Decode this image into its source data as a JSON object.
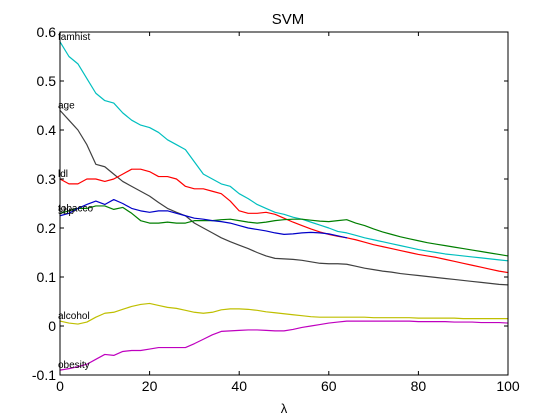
{
  "chart_data": {
    "type": "line",
    "title": "SVM",
    "xlabel": "λ",
    "ylabel": "",
    "xlim": [
      0,
      100
    ],
    "ylim": [
      -0.1,
      0.6
    ],
    "xticks": [
      0,
      20,
      40,
      60,
      80,
      100
    ],
    "xtick_labels": [
      "0",
      "20",
      "40",
      "60",
      "80",
      "100"
    ],
    "yticks": [
      -0.1,
      0,
      0.1,
      0.2,
      0.3,
      0.4,
      0.5,
      0.6
    ],
    "ytick_labels": [
      "-0.1",
      "0",
      "0.1",
      "0.2",
      "0.3",
      "0.4",
      "0.5",
      "0.6"
    ],
    "grid": false,
    "series": [
      {
        "name": "famhist",
        "color": "#00bfbf",
        "x": [
          0,
          2,
          4,
          6,
          8,
          10,
          12,
          14,
          16,
          18,
          20,
          22,
          24,
          26,
          28,
          30,
          32,
          34,
          36,
          38,
          40,
          42,
          44,
          46,
          48,
          50,
          52,
          54,
          56,
          58,
          60,
          62,
          64,
          66,
          68,
          70,
          72,
          74,
          76,
          78,
          80,
          82,
          84,
          86,
          88,
          90,
          92,
          94,
          96,
          98,
          100
        ],
        "y": [
          0.58,
          0.55,
          0.535,
          0.505,
          0.475,
          0.46,
          0.455,
          0.435,
          0.42,
          0.41,
          0.405,
          0.395,
          0.38,
          0.37,
          0.36,
          0.335,
          0.31,
          0.3,
          0.29,
          0.285,
          0.27,
          0.26,
          0.248,
          0.24,
          0.232,
          0.228,
          0.222,
          0.218,
          0.212,
          0.206,
          0.2,
          0.193,
          0.19,
          0.185,
          0.18,
          0.176,
          0.172,
          0.168,
          0.164,
          0.16,
          0.156,
          0.153,
          0.15,
          0.147,
          0.145,
          0.143,
          0.141,
          0.139,
          0.137,
          0.135,
          0.133
        ]
      },
      {
        "name": "age",
        "color": "#404040",
        "x": [
          0,
          2,
          4,
          6,
          8,
          10,
          12,
          14,
          16,
          18,
          20,
          22,
          24,
          26,
          28,
          30,
          32,
          34,
          36,
          38,
          40,
          42,
          44,
          46,
          48,
          50,
          52,
          54,
          56,
          58,
          60,
          62,
          64,
          66,
          68,
          70,
          72,
          74,
          76,
          78,
          80,
          82,
          84,
          86,
          88,
          90,
          92,
          94,
          96,
          98,
          100
        ],
        "y": [
          0.44,
          0.42,
          0.4,
          0.37,
          0.33,
          0.325,
          0.31,
          0.295,
          0.285,
          0.275,
          0.265,
          0.252,
          0.24,
          0.232,
          0.225,
          0.21,
          0.2,
          0.19,
          0.18,
          0.172,
          0.165,
          0.158,
          0.15,
          0.143,
          0.138,
          0.137,
          0.136,
          0.134,
          0.131,
          0.128,
          0.127,
          0.127,
          0.126,
          0.122,
          0.118,
          0.115,
          0.112,
          0.11,
          0.107,
          0.105,
          0.103,
          0.101,
          0.099,
          0.097,
          0.095,
          0.093,
          0.091,
          0.089,
          0.087,
          0.085,
          0.084
        ]
      },
      {
        "name": "ldl",
        "color": "#ff0000",
        "x": [
          0,
          2,
          4,
          6,
          8,
          10,
          12,
          14,
          16,
          18,
          20,
          22,
          24,
          26,
          28,
          30,
          32,
          34,
          36,
          38,
          40,
          42,
          44,
          46,
          48,
          50,
          52,
          54,
          56,
          58,
          60,
          62,
          64,
          66,
          68,
          70,
          72,
          74,
          76,
          78,
          80,
          82,
          84,
          86,
          88,
          90,
          92,
          94,
          96,
          98,
          100
        ],
        "y": [
          0.3,
          0.29,
          0.29,
          0.3,
          0.3,
          0.295,
          0.3,
          0.31,
          0.32,
          0.32,
          0.315,
          0.305,
          0.305,
          0.3,
          0.285,
          0.28,
          0.28,
          0.275,
          0.27,
          0.255,
          0.235,
          0.23,
          0.23,
          0.232,
          0.228,
          0.22,
          0.212,
          0.205,
          0.198,
          0.192,
          0.187,
          0.183,
          0.18,
          0.176,
          0.171,
          0.166,
          0.162,
          0.158,
          0.154,
          0.15,
          0.146,
          0.143,
          0.14,
          0.136,
          0.132,
          0.128,
          0.124,
          0.12,
          0.116,
          0.112,
          0.109
        ]
      },
      {
        "name": "tobacco",
        "color": "#007f00",
        "x": [
          0,
          2,
          4,
          6,
          8,
          10,
          12,
          14,
          16,
          18,
          20,
          22,
          24,
          26,
          28,
          30,
          32,
          34,
          36,
          38,
          40,
          42,
          44,
          46,
          48,
          50,
          52,
          54,
          56,
          58,
          60,
          62,
          64,
          66,
          68,
          70,
          72,
          74,
          76,
          78,
          80,
          82,
          84,
          86,
          88,
          90,
          92,
          94,
          96,
          98,
          100
        ],
        "y": [
          0.23,
          0.235,
          0.24,
          0.24,
          0.245,
          0.245,
          0.238,
          0.242,
          0.23,
          0.215,
          0.21,
          0.21,
          0.212,
          0.21,
          0.21,
          0.215,
          0.215,
          0.215,
          0.217,
          0.218,
          0.215,
          0.212,
          0.21,
          0.212,
          0.215,
          0.217,
          0.218,
          0.218,
          0.216,
          0.214,
          0.213,
          0.215,
          0.217,
          0.21,
          0.205,
          0.198,
          0.192,
          0.187,
          0.182,
          0.178,
          0.174,
          0.17,
          0.167,
          0.164,
          0.161,
          0.158,
          0.155,
          0.152,
          0.149,
          0.146,
          0.143
        ]
      },
      {
        "name": "sbp",
        "color": "#0000c8",
        "x": [
          0,
          2,
          4,
          6,
          8,
          10,
          12,
          14,
          16,
          18,
          20,
          22,
          24,
          26,
          28,
          30,
          32,
          34,
          36,
          38,
          40,
          42,
          44,
          46,
          48,
          50,
          52,
          54,
          56,
          58,
          60,
          62,
          64
        ],
        "y": [
          0.225,
          0.23,
          0.24,
          0.248,
          0.255,
          0.248,
          0.258,
          0.25,
          0.24,
          0.235,
          0.232,
          0.235,
          0.235,
          0.23,
          0.225,
          0.22,
          0.218,
          0.215,
          0.213,
          0.21,
          0.205,
          0.2,
          0.197,
          0.194,
          0.19,
          0.187,
          0.188,
          0.19,
          0.191,
          0.19,
          0.188,
          0.184,
          0.18
        ]
      },
      {
        "name": "alcohol",
        "color": "#bfbf00",
        "x": [
          0,
          2,
          4,
          6,
          8,
          10,
          12,
          14,
          16,
          18,
          20,
          22,
          24,
          26,
          28,
          30,
          32,
          34,
          36,
          38,
          40,
          42,
          44,
          46,
          48,
          50,
          52,
          54,
          56,
          58,
          60,
          62,
          64,
          66,
          68,
          70,
          72,
          74,
          76,
          78,
          80,
          82,
          84,
          86,
          88,
          90,
          92,
          94,
          96,
          98,
          100
        ],
        "y": [
          0.01,
          0.006,
          0.004,
          0.008,
          0.018,
          0.026,
          0.028,
          0.034,
          0.04,
          0.044,
          0.046,
          0.042,
          0.038,
          0.036,
          0.032,
          0.028,
          0.026,
          0.028,
          0.033,
          0.035,
          0.035,
          0.034,
          0.032,
          0.029,
          0.027,
          0.025,
          0.023,
          0.021,
          0.019,
          0.018,
          0.018,
          0.018,
          0.018,
          0.018,
          0.018,
          0.017,
          0.017,
          0.017,
          0.017,
          0.017,
          0.016,
          0.016,
          0.016,
          0.016,
          0.016,
          0.015,
          0.015,
          0.015,
          0.015,
          0.015,
          0.015
        ]
      },
      {
        "name": "obesity",
        "color": "#bf00bf",
        "x": [
          0,
          2,
          4,
          6,
          8,
          10,
          12,
          14,
          16,
          18,
          20,
          22,
          24,
          26,
          28,
          30,
          32,
          34,
          36,
          38,
          40,
          42,
          44,
          46,
          48,
          50,
          52,
          54,
          56,
          58,
          60,
          62,
          64,
          66,
          68,
          70,
          72,
          74,
          76,
          78,
          80,
          82,
          84,
          86,
          88,
          90,
          92,
          94,
          96,
          98,
          100
        ],
        "y": [
          -0.09,
          -0.087,
          -0.083,
          -0.078,
          -0.068,
          -0.058,
          -0.06,
          -0.052,
          -0.05,
          -0.05,
          -0.047,
          -0.044,
          -0.044,
          -0.044,
          -0.044,
          -0.036,
          -0.027,
          -0.018,
          -0.011,
          -0.01,
          -0.009,
          -0.008,
          -0.008,
          -0.009,
          -0.01,
          -0.01,
          -0.007,
          -0.003,
          0.0,
          0.003,
          0.006,
          0.008,
          0.01,
          0.01,
          0.01,
          0.01,
          0.01,
          0.01,
          0.01,
          0.01,
          0.009,
          0.009,
          0.009,
          0.009,
          0.008,
          0.008,
          0.008,
          0.007,
          0.007,
          0.007,
          0.006
        ]
      }
    ]
  }
}
